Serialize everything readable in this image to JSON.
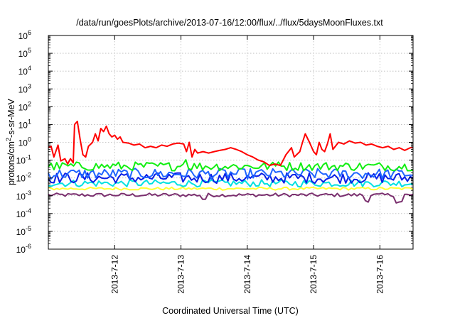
{
  "chart_data": {
    "type": "line",
    "title": "/data/run/goesPlots/archive/2013-07-16/12:00/flux/../flux/5daysMoonFluxes.txt",
    "xlabel": "Coordinated Universal Time (UTC)",
    "ylabel": {
      "prefix": "protons/cm",
      "sup": "2",
      "suffix": "-s-sr-MeV"
    },
    "y_scale": "log",
    "ylim_exp": [
      -6,
      6
    ],
    "y_tick_labels": [
      {
        "base": "10",
        "exp": "-6"
      },
      {
        "base": "10",
        "exp": "-5"
      },
      {
        "base": "10",
        "exp": "-4"
      },
      {
        "base": "10",
        "exp": "-3"
      },
      {
        "base": "10",
        "exp": "-2"
      },
      {
        "base": "10",
        "exp": "-1"
      },
      {
        "base": "10",
        "exp": "0"
      },
      {
        "base": "10",
        "exp": "1"
      },
      {
        "base": "10",
        "exp": "2"
      },
      {
        "base": "10",
        "exp": "3"
      },
      {
        "base": "10",
        "exp": "4"
      },
      {
        "base": "10",
        "exp": "5"
      },
      {
        "base": "10",
        "exp": "6"
      }
    ],
    "xlim": [
      "2013-07-11T00:00",
      "2013-07-16T12:00"
    ],
    "x_ticks": [
      "2013-07-12",
      "2013-07-13",
      "2013-07-14",
      "2013-07-15",
      "2013-07-16"
    ],
    "x_tick_labels": [
      "2013-7-12",
      "2013-7-13",
      "2013-7-14",
      "2013-7-15",
      "2013-7-16"
    ],
    "grid": true,
    "series": [
      {
        "color": "#7a2f6e",
        "level": 0.0011,
        "noise": 0.1,
        "spikes": [
          [
            "2013-07-13T08:00",
            0.6
          ],
          [
            "2013-07-15T19:00",
            0.5
          ],
          [
            "2013-07-16T07:00",
            0.4
          ]
        ]
      },
      {
        "color": "#ffff33",
        "level": 0.0025,
        "noise": 0.08,
        "spikes": []
      },
      {
        "color": "#00e0e0",
        "level": 0.005,
        "noise": 0.2,
        "spikes": []
      },
      {
        "color": "#0a1ee6",
        "level": 0.01,
        "noise": 0.3,
        "spikes": []
      },
      {
        "color": "#1e64ff",
        "level": 0.017,
        "noise": 0.3,
        "spikes": []
      },
      {
        "color": "#11ee11",
        "level": 0.045,
        "noise": 0.25,
        "spikes": [
          [
            "2013-07-13T01:00",
            2.2
          ],
          [
            "2013-07-14T12:00",
            1.6
          ]
        ]
      },
      {
        "color": "#ff0000",
        "points": [
          [
            "2013-07-11T00:00",
            0.5
          ],
          [
            "2013-07-11T01:00",
            0.6
          ],
          [
            "2013-07-11T02:00",
            0.15
          ],
          [
            "2013-07-11T03:30",
            0.7
          ],
          [
            "2013-07-11T04:30",
            0.09
          ],
          [
            "2013-07-11T06:00",
            0.12
          ],
          [
            "2013-07-11T07:00",
            0.06
          ],
          [
            "2013-07-11T08:00",
            0.12
          ],
          [
            "2013-07-11T09:00",
            0.07
          ],
          [
            "2013-07-11T09:30",
            10
          ],
          [
            "2013-07-11T10:30",
            15
          ],
          [
            "2013-07-11T11:30",
            1.5
          ],
          [
            "2013-07-11T12:30",
            0.2
          ],
          [
            "2013-07-11T13:30",
            0.15
          ],
          [
            "2013-07-11T14:30",
            0.6
          ],
          [
            "2013-07-11T16:00",
            1.0
          ],
          [
            "2013-07-11T17:00",
            3.0
          ],
          [
            "2013-07-11T18:00",
            1.2
          ],
          [
            "2013-07-11T19:00",
            6.0
          ],
          [
            "2013-07-11T20:00",
            4.0
          ],
          [
            "2013-07-11T21:00",
            8.0
          ],
          [
            "2013-07-11T22:00",
            3.0
          ],
          [
            "2013-07-11T23:00",
            2.0
          ],
          [
            "2013-07-12T00:00",
            2.5
          ],
          [
            "2013-07-12T01:00",
            1.5
          ],
          [
            "2013-07-12T02:00",
            2.0
          ],
          [
            "2013-07-12T03:00",
            1.0
          ],
          [
            "2013-07-12T05:00",
            0.9
          ],
          [
            "2013-07-12T07:00",
            0.7
          ],
          [
            "2013-07-12T09:00",
            0.8
          ],
          [
            "2013-07-12T11:00",
            0.5
          ],
          [
            "2013-07-12T13:00",
            0.6
          ],
          [
            "2013-07-12T15:00",
            0.5
          ],
          [
            "2013-07-12T17:00",
            0.7
          ],
          [
            "2013-07-12T19:00",
            0.6
          ],
          [
            "2013-07-12T21:00",
            0.8
          ],
          [
            "2013-07-12T23:00",
            0.9
          ],
          [
            "2013-07-13T01:00",
            0.8
          ],
          [
            "2013-07-13T02:00",
            0.3
          ],
          [
            "2013-07-13T03:00",
            1.0
          ],
          [
            "2013-07-13T04:00",
            0.15
          ],
          [
            "2013-07-13T05:00",
            0.4
          ],
          [
            "2013-07-13T06:00",
            0.25
          ],
          [
            "2013-07-13T08:00",
            0.3
          ],
          [
            "2013-07-13T10:00",
            0.25
          ],
          [
            "2013-07-13T12:00",
            0.3
          ],
          [
            "2013-07-13T14:00",
            0.35
          ],
          [
            "2013-07-13T16:00",
            0.4
          ],
          [
            "2013-07-13T18:00",
            0.5
          ],
          [
            "2013-07-13T20:00",
            0.4
          ],
          [
            "2013-07-13T22:00",
            0.3
          ],
          [
            "2013-07-14T00:00",
            0.2
          ],
          [
            "2013-07-14T02:00",
            0.15
          ],
          [
            "2013-07-14T04:00",
            0.1
          ],
          [
            "2013-07-14T06:00",
            0.08
          ],
          [
            "2013-07-14T08:00",
            0.05
          ],
          [
            "2013-07-14T10:00",
            0.06
          ],
          [
            "2013-07-14T12:00",
            0.05
          ],
          [
            "2013-07-14T14:00",
            0.2
          ],
          [
            "2013-07-14T16:00",
            0.5
          ],
          [
            "2013-07-14T17:00",
            0.15
          ],
          [
            "2013-07-14T19:00",
            0.3
          ],
          [
            "2013-07-14T20:00",
            1.0
          ],
          [
            "2013-07-14T21:00",
            3.0
          ],
          [
            "2013-07-14T22:30",
            1.0
          ],
          [
            "2013-07-15T00:00",
            0.3
          ],
          [
            "2013-07-15T01:00",
            0.2
          ],
          [
            "2013-07-15T02:00",
            1.0
          ],
          [
            "2013-07-15T03:00",
            0.4
          ],
          [
            "2013-07-15T04:00",
            0.3
          ],
          [
            "2013-07-15T05:00",
            0.8
          ],
          [
            "2013-07-15T06:00",
            3.0
          ],
          [
            "2013-07-15T07:00",
            0.4
          ],
          [
            "2013-07-15T09:00",
            1.0
          ],
          [
            "2013-07-15T11:00",
            0.8
          ],
          [
            "2013-07-15T13:00",
            1.2
          ],
          [
            "2013-07-15T15:00",
            0.9
          ],
          [
            "2013-07-15T17:00",
            1.0
          ],
          [
            "2013-07-15T19:00",
            0.7
          ],
          [
            "2013-07-15T21:00",
            0.8
          ],
          [
            "2013-07-15T23:00",
            0.6
          ],
          [
            "2013-07-16T01:00",
            0.5
          ],
          [
            "2013-07-16T03:00",
            0.6
          ],
          [
            "2013-07-16T05:00",
            0.4
          ],
          [
            "2013-07-16T07:00",
            0.5
          ],
          [
            "2013-07-16T09:00",
            0.35
          ],
          [
            "2013-07-16T11:00",
            0.5
          ],
          [
            "2013-07-16T12:00",
            0.5
          ]
        ]
      }
    ]
  }
}
